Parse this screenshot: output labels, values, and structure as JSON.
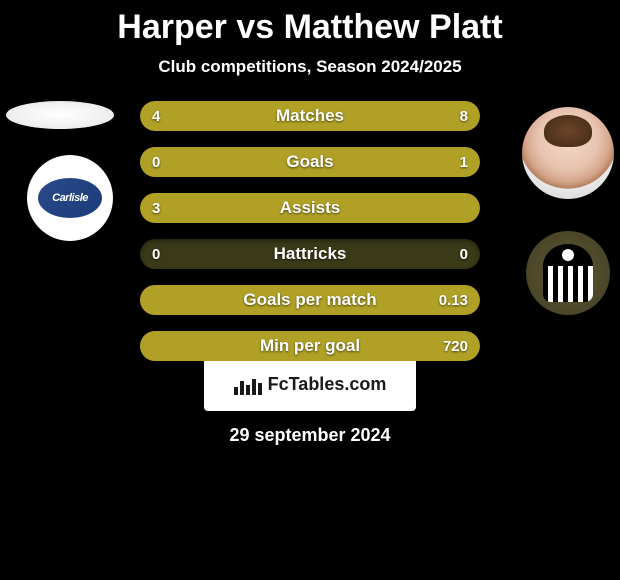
{
  "title": "Harper vs Matthew Platt",
  "subtitle": "Club competitions, Season 2024/2025",
  "date": "29 september 2024",
  "branding": "FcTables.com",
  "colors": {
    "background": "#000000",
    "bar_empty": "#3a3a18",
    "bar_fill": "#b0a126",
    "text": "#ffffff"
  },
  "left_club_name": "Carlisle",
  "bars": [
    {
      "label": "Matches",
      "left": "4",
      "right": "8",
      "left_pct": 33,
      "right_pct": 67
    },
    {
      "label": "Goals",
      "left": "0",
      "right": "1",
      "left_pct": 0,
      "right_pct": 100
    },
    {
      "label": "Assists",
      "left": "3",
      "right": "",
      "left_pct": 100,
      "right_pct": 0
    },
    {
      "label": "Hattricks",
      "left": "0",
      "right": "0",
      "left_pct": 0,
      "right_pct": 0
    },
    {
      "label": "Goals per match",
      "left": "",
      "right": "0.13",
      "left_pct": 0,
      "right_pct": 100
    },
    {
      "label": "Min per goal",
      "left": "",
      "right": "720",
      "left_pct": 0,
      "right_pct": 100
    }
  ]
}
